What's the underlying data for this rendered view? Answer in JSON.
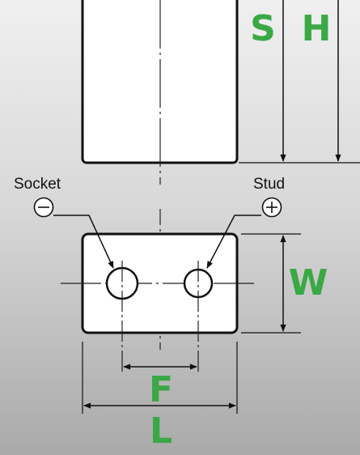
{
  "dimensions": {
    "s": "S",
    "h": "H",
    "w": "W",
    "f": "F",
    "l": "L"
  },
  "terminals": {
    "negative_label": "Socket",
    "positive_label": "Stud",
    "negative_symbol_icon": "minus-circle-icon",
    "positive_symbol_icon": "plus-circle-icon"
  },
  "colors": {
    "dimension_label": "#3aa845",
    "outline": "#111111",
    "battery_fill": "#ffffff"
  }
}
